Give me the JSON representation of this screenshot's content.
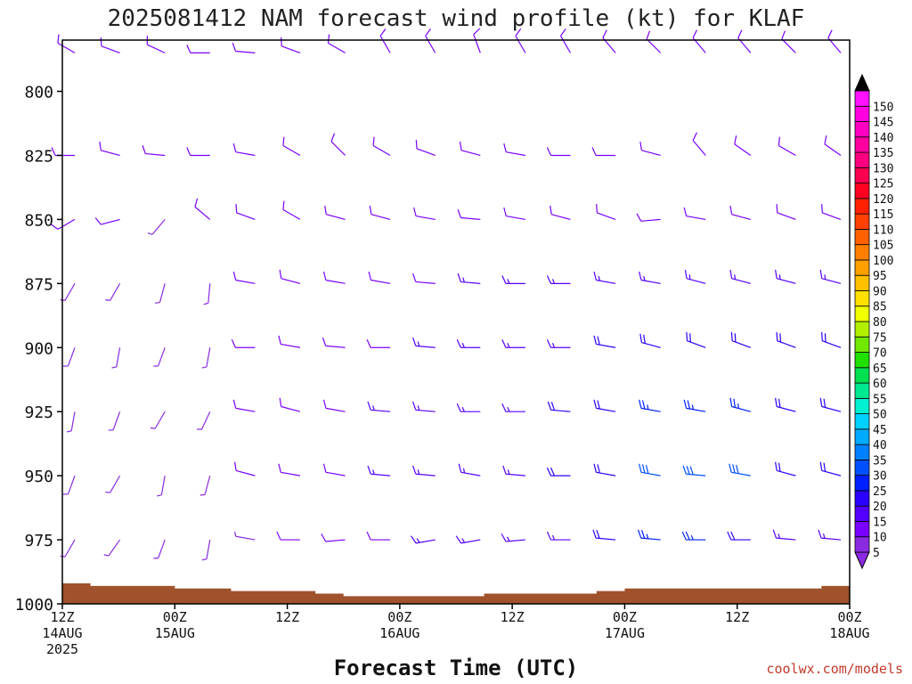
{
  "page": {
    "credit": "coolwx.com/models"
  },
  "chart_data": {
    "type": "wind-barb time-height profile",
    "title": "2025081412 NAM forecast wind profile (kt) for KLAF",
    "xlabel": "Forecast Time (UTC)",
    "ylabel": "",
    "y_axis": {
      "unit": "hPa",
      "range": [
        780,
        1000
      ],
      "inverted": true,
      "ticks": [
        800,
        825,
        850,
        875,
        900,
        925,
        950,
        975,
        1000
      ]
    },
    "x_axis": {
      "range_utc": [
        "2025-08-14T12:00Z",
        "2025-08-18T00:00Z"
      ],
      "ticks": [
        {
          "label": "12Z",
          "sub": "14AUG",
          "sub2": "2025"
        },
        {
          "label": "00Z",
          "sub": "15AUG",
          "sub2": ""
        },
        {
          "label": "12Z",
          "sub": "",
          "sub2": ""
        },
        {
          "label": "00Z",
          "sub": "16AUG",
          "sub2": ""
        },
        {
          "label": "12Z",
          "sub": "",
          "sub2": ""
        },
        {
          "label": "00Z",
          "sub": "17AUG",
          "sub2": ""
        },
        {
          "label": "12Z",
          "sub": "",
          "sub2": ""
        },
        {
          "label": "00Z",
          "sub": "18AUG",
          "sub2": ""
        }
      ]
    },
    "colorbar": {
      "unit": "kt",
      "levels": [
        5,
        10,
        15,
        20,
        25,
        30,
        35,
        40,
        45,
        50,
        55,
        60,
        65,
        70,
        75,
        80,
        85,
        90,
        95,
        100,
        105,
        110,
        115,
        120,
        125,
        130,
        135,
        140,
        145,
        150
      ],
      "colors": [
        "#8a2be2",
        "#7a00ff",
        "#5500ff",
        "#2a00ff",
        "#0020ff",
        "#0050ff",
        "#0080ff",
        "#00aaff",
        "#00d0ff",
        "#00f0d0",
        "#00e890",
        "#00e050",
        "#20e000",
        "#70e800",
        "#b0f000",
        "#f0ff00",
        "#ffe000",
        "#ffc000",
        "#ffa000",
        "#ff8000",
        "#ff6000",
        "#ff4000",
        "#ff2000",
        "#ff0020",
        "#ff0050",
        "#ff0080",
        "#ff00a0",
        "#ff00c0",
        "#ff00e0",
        "#ff10ff"
      ],
      "extends": "both"
    },
    "terrain_color": "#a0522d",
    "surface_pressure_hpa": {
      "times_hours": [
        0,
        3,
        6,
        9,
        12,
        15,
        18,
        21,
        24,
        27,
        30,
        33,
        36,
        39,
        42,
        45,
        48,
        51,
        54,
        57,
        60,
        63,
        66,
        69,
        72,
        75,
        78,
        81,
        84
      ],
      "values": [
        992,
        993,
        993,
        993,
        994,
        994,
        995,
        995,
        995,
        996,
        997,
        997,
        997,
        997,
        997,
        996,
        996,
        996,
        996,
        995,
        994,
        994,
        994,
        994,
        994,
        994,
        994,
        993,
        993
      ]
    },
    "wind_series": [
      {
        "p": 785,
        "dir": [
          300,
          290,
          295,
          270,
          275,
          290,
          300,
          330,
          330,
          340,
          330,
          330,
          320,
          315,
          320,
          320,
          315,
          320
        ],
        "spd": [
          10,
          10,
          10,
          10,
          10,
          10,
          10,
          10,
          10,
          10,
          10,
          10,
          10,
          10,
          10,
          10,
          10,
          10
        ]
      },
      {
        "p": 825,
        "dir": [
          270,
          285,
          275,
          270,
          280,
          300,
          315,
          300,
          290,
          285,
          280,
          270,
          270,
          285,
          320,
          305,
          300,
          305
        ],
        "spd": [
          10,
          10,
          10,
          10,
          10,
          10,
          10,
          10,
          10,
          10,
          10,
          10,
          10,
          10,
          10,
          10,
          10,
          10
        ]
      },
      {
        "p": 850,
        "dir": [
          240,
          255,
          220,
          310,
          290,
          300,
          285,
          285,
          280,
          275,
          280,
          285,
          290,
          265,
          280,
          285,
          290,
          290
        ],
        "spd": [
          10,
          10,
          5,
          10,
          10,
          10,
          10,
          10,
          10,
          10,
          10,
          10,
          10,
          10,
          10,
          10,
          10,
          10
        ]
      },
      {
        "p": 875,
        "dir": [
          210,
          210,
          195,
          185,
          280,
          285,
          280,
          280,
          275,
          275,
          270,
          270,
          280,
          280,
          285,
          285,
          285,
          285
        ],
        "spd": [
          5,
          5,
          5,
          5,
          10,
          10,
          10,
          10,
          10,
          15,
          15,
          15,
          15,
          15,
          15,
          15,
          15,
          15
        ]
      },
      {
        "p": 900,
        "dir": [
          200,
          190,
          200,
          190,
          270,
          280,
          275,
          270,
          275,
          270,
          270,
          270,
          280,
          285,
          290,
          290,
          290,
          290
        ],
        "spd": [
          5,
          5,
          5,
          5,
          10,
          10,
          10,
          10,
          15,
          15,
          15,
          15,
          20,
          20,
          20,
          20,
          20,
          20
        ]
      },
      {
        "p": 925,
        "dir": [
          190,
          200,
          210,
          205,
          280,
          285,
          280,
          275,
          275,
          270,
          270,
          275,
          280,
          280,
          280,
          285,
          285,
          285
        ],
        "spd": [
          5,
          5,
          5,
          5,
          10,
          10,
          10,
          15,
          15,
          15,
          15,
          20,
          20,
          25,
          25,
          25,
          20,
          20
        ]
      },
      {
        "p": 950,
        "dir": [
          200,
          210,
          190,
          195,
          285,
          280,
          280,
          275,
          275,
          280,
          275,
          270,
          280,
          280,
          275,
          280,
          285,
          285
        ],
        "spd": [
          5,
          5,
          5,
          5,
          10,
          10,
          10,
          15,
          15,
          15,
          15,
          20,
          20,
          30,
          30,
          30,
          20,
          20
        ]
      },
      {
        "p": 975,
        "dir": [
          210,
          215,
          200,
          190,
          280,
          270,
          265,
          270,
          260,
          260,
          265,
          270,
          275,
          275,
          270,
          270,
          275,
          275
        ],
        "spd": [
          5,
          5,
          5,
          5,
          5,
          10,
          10,
          10,
          15,
          15,
          15,
          15,
          20,
          25,
          25,
          20,
          15,
          15
        ]
      }
    ]
  }
}
